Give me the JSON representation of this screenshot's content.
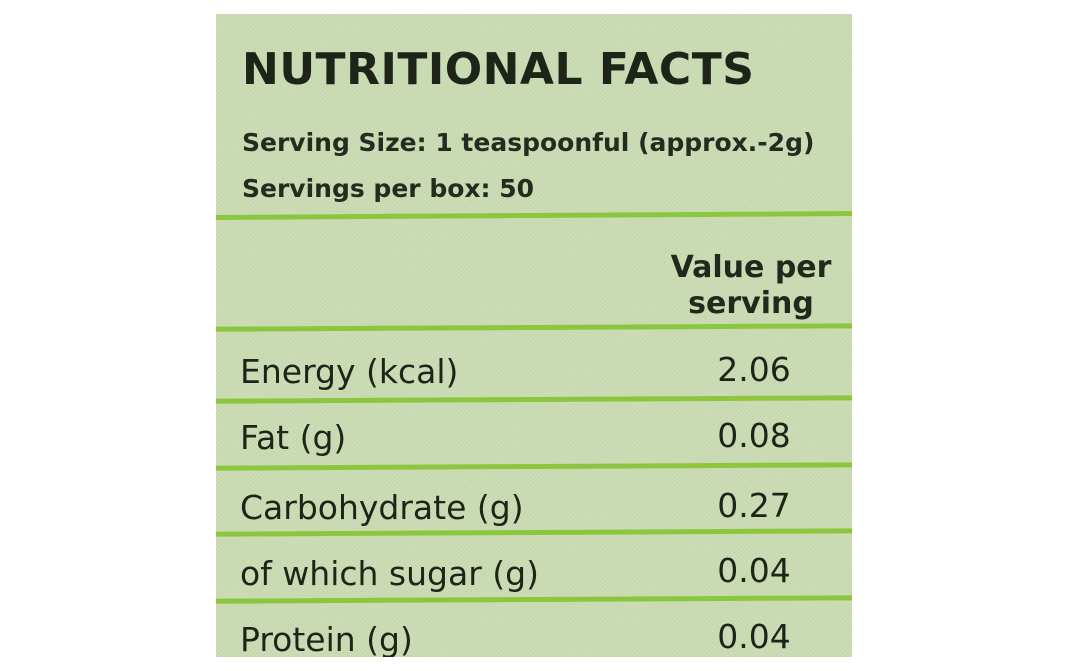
{
  "title": "NUTRITIONAL FACTS",
  "serving_size": "Serving Size: 1 teaspoonful (approx.-2g)",
  "servings_per_box": "Servings per box: 50",
  "table": {
    "column_header": "Value per serving",
    "rows": [
      {
        "name": "Energy (kcal)",
        "value": "2.06"
      },
      {
        "name": "Fat (g)",
        "value": "0.08"
      },
      {
        "name": "Carbohydrate (g)",
        "value": "0.27"
      },
      {
        "name": "of which sugar (g)",
        "value": "0.04"
      },
      {
        "name": "Protein (g)",
        "value": "0.04"
      }
    ]
  },
  "colors": {
    "background": "#cbdcb4",
    "rule_lines": "#8cc63f",
    "text": "#1f2418"
  }
}
